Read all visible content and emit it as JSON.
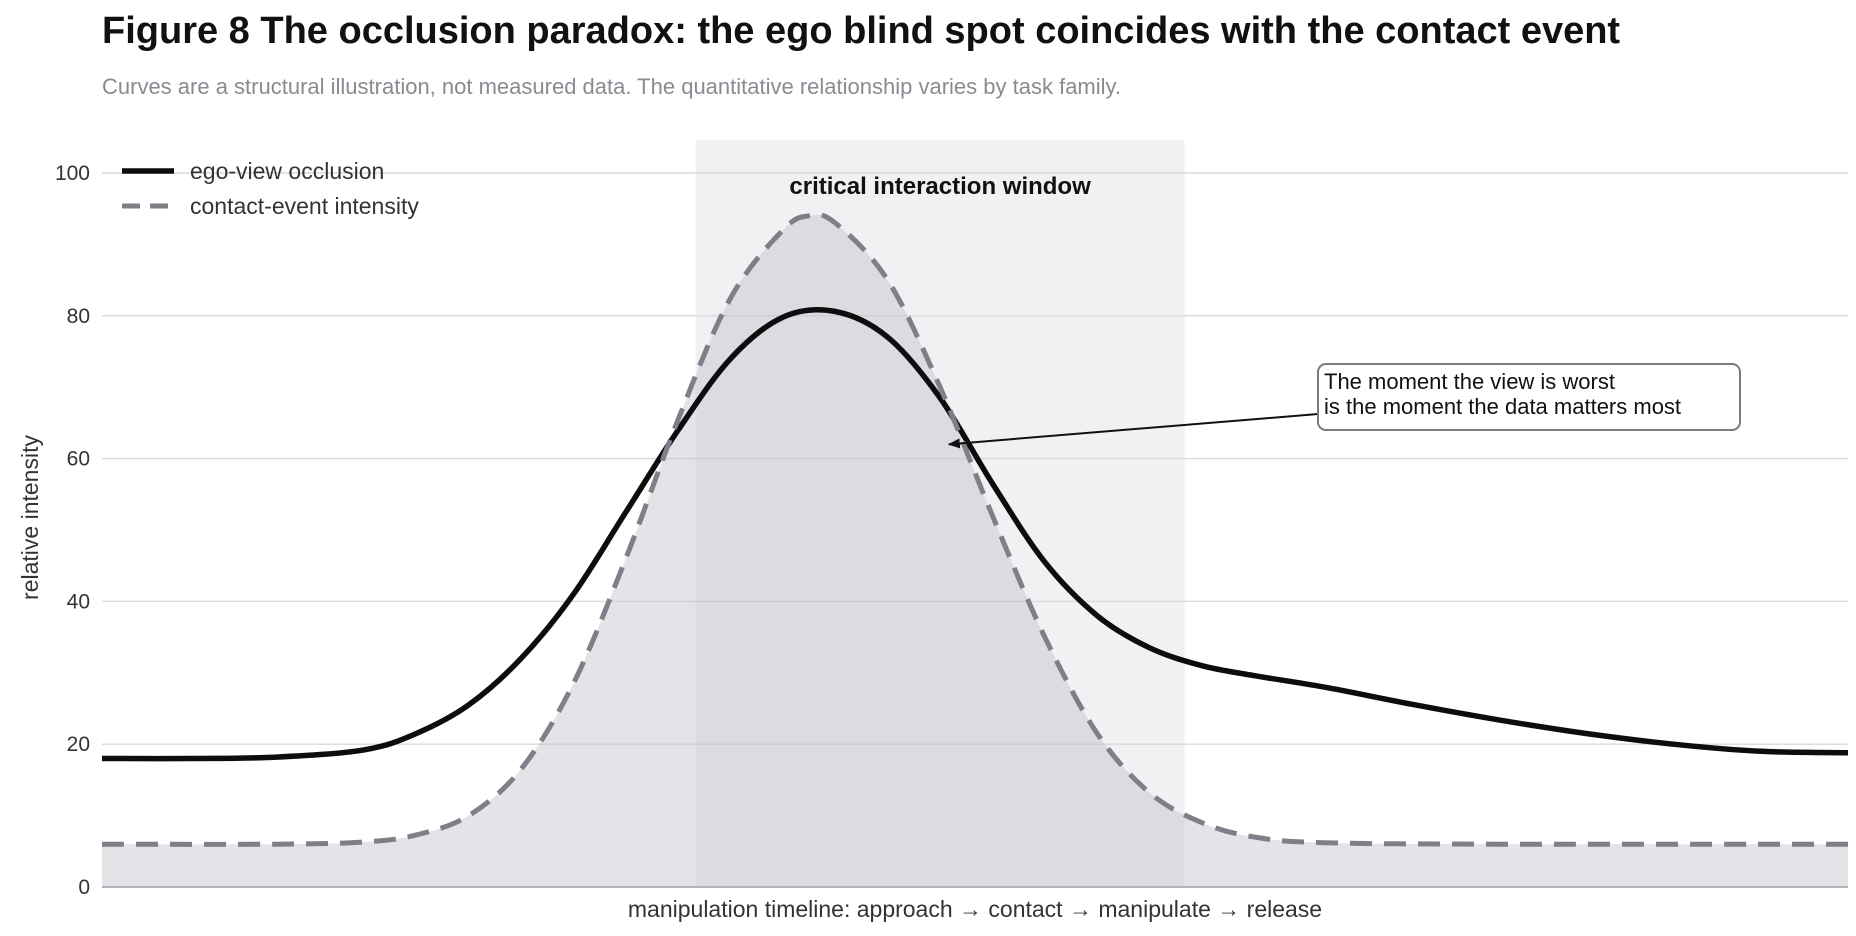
{
  "figure": {
    "title": "Figure 8  The occlusion paradox: the ego blind spot coincides with the contact event",
    "subtitle": "Curves are a structural illustration, not measured data. The quantitative relationship varies by task family."
  },
  "chart_data": {
    "type": "line",
    "title": "Figure 8  The occlusion paradox: the ego blind spot coincides with the contact event",
    "xlabel": "manipulation timeline: approach → contact → manipulate → release",
    "ylabel": "relative intensity",
    "ylim": [
      0,
      105
    ],
    "yticks": [
      0,
      20,
      40,
      60,
      80,
      100
    ],
    "xlim": [
      0,
      100
    ],
    "grid": true,
    "legend_position": "top-left",
    "series": [
      {
        "name": "ego-view occlusion",
        "style": "solid",
        "color": "#0d0d0d",
        "points": [
          [
            0,
            18
          ],
          [
            5,
            18
          ],
          [
            10,
            18.2
          ],
          [
            15,
            19.2
          ],
          [
            18,
            21.5
          ],
          [
            21,
            25.5
          ],
          [
            24,
            32
          ],
          [
            27,
            41
          ],
          [
            30,
            52.5
          ],
          [
            33,
            64
          ],
          [
            36,
            74
          ],
          [
            39,
            79.8
          ],
          [
            42,
            80.6
          ],
          [
            45,
            77
          ],
          [
            48,
            68.5
          ],
          [
            51,
            56.5
          ],
          [
            54,
            45.5
          ],
          [
            57,
            38
          ],
          [
            60,
            33.5
          ],
          [
            63,
            31
          ],
          [
            66,
            29.6
          ],
          [
            70,
            28
          ],
          [
            75,
            25.6
          ],
          [
            80,
            23.4
          ],
          [
            85,
            21.5
          ],
          [
            90,
            20
          ],
          [
            95,
            19
          ],
          [
            100,
            18.8
          ]
        ]
      },
      {
        "name": "contact-event intensity",
        "style": "dashed",
        "color": "#7f7f88",
        "fill": true,
        "points": [
          [
            0,
            6
          ],
          [
            10,
            6
          ],
          [
            15,
            6.3
          ],
          [
            18,
            7.3
          ],
          [
            21,
            10
          ],
          [
            24,
            16.5
          ],
          [
            27,
            28.5
          ],
          [
            30,
            46
          ],
          [
            33,
            65.5
          ],
          [
            36,
            82.5
          ],
          [
            39,
            92
          ],
          [
            40.5,
            94
          ],
          [
            42,
            93
          ],
          [
            45,
            85
          ],
          [
            48,
            70
          ],
          [
            51,
            52
          ],
          [
            54,
            35
          ],
          [
            57,
            21.5
          ],
          [
            60,
            13.2
          ],
          [
            63,
            9
          ],
          [
            66,
            7
          ],
          [
            70,
            6.2
          ],
          [
            80,
            6
          ],
          [
            100,
            6
          ]
        ]
      }
    ],
    "shaded_region": {
      "label": "critical interaction window",
      "x_range": [
        34,
        62
      ],
      "color": "#f0f1f3"
    },
    "annotation": {
      "lines": [
        "The moment the view is worst",
        "is the moment the data matters most"
      ],
      "target": [
        48.5,
        62
      ]
    }
  }
}
